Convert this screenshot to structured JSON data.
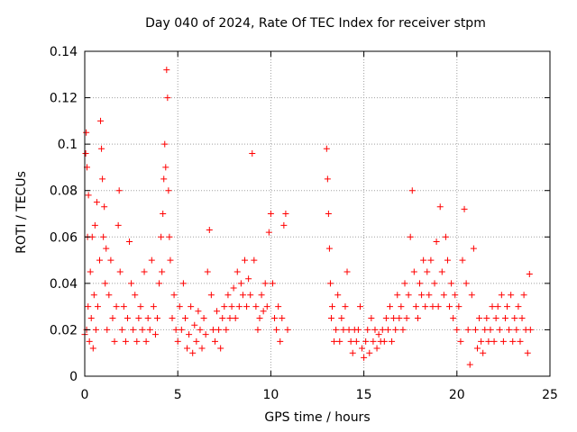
{
  "chart_data": {
    "type": "scatter",
    "title": "Day 040 of 2024, Rate Of TEC Index for receiver stpm",
    "xlabel": "GPS time / hours",
    "ylabel": "ROTI / TECUs",
    "xlim": [
      0,
      25
    ],
    "ylim": [
      0,
      0.14
    ],
    "x_ticks": [
      "0",
      "5",
      "10",
      "15",
      "20",
      "25"
    ],
    "y_ticks": [
      "0",
      "0.02",
      "0.04",
      "0.06",
      "0.08",
      "0.1",
      "0.12",
      "0.14"
    ],
    "grid": true,
    "marker": "+",
    "color": "#ff0000",
    "data_gap_hours": [
      11.0,
      12.9
    ],
    "series": [
      {
        "name": "ROTI",
        "points": [
          [
            0.0,
            0.018
          ],
          [
            0.05,
            0.096
          ],
          [
            0.08,
            0.105
          ],
          [
            0.1,
            0.02
          ],
          [
            0.12,
            0.09
          ],
          [
            0.15,
            0.06
          ],
          [
            0.18,
            0.03
          ],
          [
            0.2,
            0.078
          ],
          [
            0.25,
            0.015
          ],
          [
            0.3,
            0.045
          ],
          [
            0.35,
            0.025
          ],
          [
            0.4,
            0.06
          ],
          [
            0.45,
            0.012
          ],
          [
            0.5,
            0.035
          ],
          [
            0.55,
            0.065
          ],
          [
            0.6,
            0.02
          ],
          [
            0.65,
            0.075
          ],
          [
            0.7,
            0.03
          ],
          [
            0.8,
            0.05
          ],
          [
            0.85,
            0.11
          ],
          [
            0.9,
            0.098
          ],
          [
            0.95,
            0.085
          ],
          [
            1.0,
            0.06
          ],
          [
            1.05,
            0.073
          ],
          [
            1.1,
            0.04
          ],
          [
            1.15,
            0.055
          ],
          [
            1.2,
            0.02
          ],
          [
            1.3,
            0.035
          ],
          [
            1.4,
            0.05
          ],
          [
            1.5,
            0.025
          ],
          [
            1.6,
            0.015
          ],
          [
            1.7,
            0.03
          ],
          [
            1.8,
            0.065
          ],
          [
            1.85,
            0.08
          ],
          [
            1.9,
            0.045
          ],
          [
            2.0,
            0.02
          ],
          [
            2.1,
            0.03
          ],
          [
            2.2,
            0.015
          ],
          [
            2.3,
            0.025
          ],
          [
            2.4,
            0.058
          ],
          [
            2.5,
            0.04
          ],
          [
            2.6,
            0.02
          ],
          [
            2.7,
            0.035
          ],
          [
            2.8,
            0.015
          ],
          [
            2.9,
            0.025
          ],
          [
            3.0,
            0.03
          ],
          [
            3.1,
            0.02
          ],
          [
            3.2,
            0.045
          ],
          [
            3.3,
            0.015
          ],
          [
            3.4,
            0.025
          ],
          [
            3.5,
            0.02
          ],
          [
            3.6,
            0.05
          ],
          [
            3.7,
            0.03
          ],
          [
            3.8,
            0.018
          ],
          [
            3.9,
            0.025
          ],
          [
            4.0,
            0.04
          ],
          [
            4.1,
            0.06
          ],
          [
            4.15,
            0.045
          ],
          [
            4.2,
            0.07
          ],
          [
            4.25,
            0.085
          ],
          [
            4.3,
            0.1
          ],
          [
            4.35,
            0.09
          ],
          [
            4.4,
            0.132
          ],
          [
            4.45,
            0.12
          ],
          [
            4.5,
            0.08
          ],
          [
            4.55,
            0.06
          ],
          [
            4.6,
            0.05
          ],
          [
            4.7,
            0.025
          ],
          [
            4.8,
            0.035
          ],
          [
            4.9,
            0.02
          ],
          [
            5.0,
            0.015
          ],
          [
            5.1,
            0.03
          ],
          [
            5.2,
            0.02
          ],
          [
            5.3,
            0.04
          ],
          [
            5.4,
            0.025
          ],
          [
            5.5,
            0.012
          ],
          [
            5.6,
            0.018
          ],
          [
            5.7,
            0.03
          ],
          [
            5.8,
            0.01
          ],
          [
            5.9,
            0.022
          ],
          [
            6.0,
            0.015
          ],
          [
            6.1,
            0.028
          ],
          [
            6.2,
            0.02
          ],
          [
            6.3,
            0.012
          ],
          [
            6.4,
            0.025
          ],
          [
            6.5,
            0.018
          ],
          [
            6.6,
            0.045
          ],
          [
            6.7,
            0.063
          ],
          [
            6.8,
            0.035
          ],
          [
            6.9,
            0.02
          ],
          [
            7.0,
            0.015
          ],
          [
            7.1,
            0.028
          ],
          [
            7.2,
            0.02
          ],
          [
            7.3,
            0.012
          ],
          [
            7.4,
            0.025
          ],
          [
            7.5,
            0.03
          ],
          [
            7.6,
            0.02
          ],
          [
            7.7,
            0.035
          ],
          [
            7.8,
            0.025
          ],
          [
            7.9,
            0.03
          ],
          [
            8.0,
            0.038
          ],
          [
            8.1,
            0.025
          ],
          [
            8.2,
            0.045
          ],
          [
            8.3,
            0.03
          ],
          [
            8.4,
            0.04
          ],
          [
            8.5,
            0.035
          ],
          [
            8.6,
            0.05
          ],
          [
            8.7,
            0.03
          ],
          [
            8.8,
            0.042
          ],
          [
            8.9,
            0.035
          ],
          [
            9.0,
            0.096
          ],
          [
            9.1,
            0.05
          ],
          [
            9.2,
            0.03
          ],
          [
            9.3,
            0.02
          ],
          [
            9.4,
            0.025
          ],
          [
            9.5,
            0.035
          ],
          [
            9.6,
            0.028
          ],
          [
            9.7,
            0.04
          ],
          [
            9.8,
            0.03
          ],
          [
            9.9,
            0.062
          ],
          [
            10.0,
            0.07
          ],
          [
            10.1,
            0.04
          ],
          [
            10.2,
            0.025
          ],
          [
            10.3,
            0.02
          ],
          [
            10.4,
            0.03
          ],
          [
            10.5,
            0.015
          ],
          [
            10.6,
            0.025
          ],
          [
            10.7,
            0.065
          ],
          [
            10.8,
            0.07
          ],
          [
            10.9,
            0.02
          ],
          [
            13.0,
            0.098
          ],
          [
            13.05,
            0.085
          ],
          [
            13.1,
            0.07
          ],
          [
            13.15,
            0.055
          ],
          [
            13.2,
            0.04
          ],
          [
            13.25,
            0.025
          ],
          [
            13.3,
            0.03
          ],
          [
            13.4,
            0.015
          ],
          [
            13.5,
            0.02
          ],
          [
            13.6,
            0.035
          ],
          [
            13.7,
            0.015
          ],
          [
            13.8,
            0.025
          ],
          [
            13.9,
            0.02
          ],
          [
            14.0,
            0.03
          ],
          [
            14.1,
            0.045
          ],
          [
            14.2,
            0.02
          ],
          [
            14.3,
            0.015
          ],
          [
            14.4,
            0.01
          ],
          [
            14.5,
            0.02
          ],
          [
            14.6,
            0.015
          ],
          [
            14.7,
            0.02
          ],
          [
            14.8,
            0.03
          ],
          [
            14.9,
            0.012
          ],
          [
            15.0,
            0.008
          ],
          [
            15.1,
            0.015
          ],
          [
            15.2,
            0.02
          ],
          [
            15.3,
            0.01
          ],
          [
            15.4,
            0.025
          ],
          [
            15.5,
            0.015
          ],
          [
            15.6,
            0.02
          ],
          [
            15.7,
            0.012
          ],
          [
            15.8,
            0.018
          ],
          [
            15.9,
            0.015
          ],
          [
            16.0,
            0.02
          ],
          [
            16.1,
            0.015
          ],
          [
            16.2,
            0.025
          ],
          [
            16.3,
            0.02
          ],
          [
            16.4,
            0.03
          ],
          [
            16.5,
            0.015
          ],
          [
            16.6,
            0.025
          ],
          [
            16.7,
            0.02
          ],
          [
            16.8,
            0.035
          ],
          [
            16.9,
            0.025
          ],
          [
            17.0,
            0.03
          ],
          [
            17.1,
            0.02
          ],
          [
            17.2,
            0.04
          ],
          [
            17.3,
            0.025
          ],
          [
            17.4,
            0.035
          ],
          [
            17.5,
            0.06
          ],
          [
            17.6,
            0.08
          ],
          [
            17.7,
            0.045
          ],
          [
            17.8,
            0.03
          ],
          [
            17.9,
            0.025
          ],
          [
            18.0,
            0.04
          ],
          [
            18.1,
            0.035
          ],
          [
            18.2,
            0.05
          ],
          [
            18.3,
            0.03
          ],
          [
            18.4,
            0.045
          ],
          [
            18.5,
            0.035
          ],
          [
            18.6,
            0.05
          ],
          [
            18.7,
            0.03
          ],
          [
            18.8,
            0.04
          ],
          [
            18.9,
            0.058
          ],
          [
            19.0,
            0.03
          ],
          [
            19.1,
            0.073
          ],
          [
            19.2,
            0.045
          ],
          [
            19.3,
            0.035
          ],
          [
            19.4,
            0.06
          ],
          [
            19.5,
            0.05
          ],
          [
            19.6,
            0.03
          ],
          [
            19.7,
            0.04
          ],
          [
            19.8,
            0.025
          ],
          [
            19.9,
            0.035
          ],
          [
            20.0,
            0.02
          ],
          [
            20.1,
            0.03
          ],
          [
            20.2,
            0.015
          ],
          [
            20.3,
            0.05
          ],
          [
            20.4,
            0.072
          ],
          [
            20.5,
            0.04
          ],
          [
            20.6,
            0.02
          ],
          [
            20.7,
            0.005
          ],
          [
            20.8,
            0.035
          ],
          [
            20.9,
            0.055
          ],
          [
            21.0,
            0.02
          ],
          [
            21.1,
            0.012
          ],
          [
            21.2,
            0.025
          ],
          [
            21.3,
            0.015
          ],
          [
            21.4,
            0.01
          ],
          [
            21.5,
            0.02
          ],
          [
            21.6,
            0.025
          ],
          [
            21.7,
            0.015
          ],
          [
            21.8,
            0.02
          ],
          [
            21.9,
            0.03
          ],
          [
            22.0,
            0.015
          ],
          [
            22.1,
            0.025
          ],
          [
            22.2,
            0.03
          ],
          [
            22.3,
            0.02
          ],
          [
            22.4,
            0.035
          ],
          [
            22.5,
            0.015
          ],
          [
            22.6,
            0.025
          ],
          [
            22.7,
            0.03
          ],
          [
            22.8,
            0.02
          ],
          [
            22.9,
            0.035
          ],
          [
            23.0,
            0.015
          ],
          [
            23.1,
            0.025
          ],
          [
            23.2,
            0.02
          ],
          [
            23.3,
            0.03
          ],
          [
            23.4,
            0.015
          ],
          [
            23.5,
            0.025
          ],
          [
            23.6,
            0.035
          ],
          [
            23.7,
            0.02
          ],
          [
            23.8,
            0.01
          ],
          [
            23.9,
            0.044
          ],
          [
            23.95,
            0.02
          ]
        ]
      }
    ]
  }
}
